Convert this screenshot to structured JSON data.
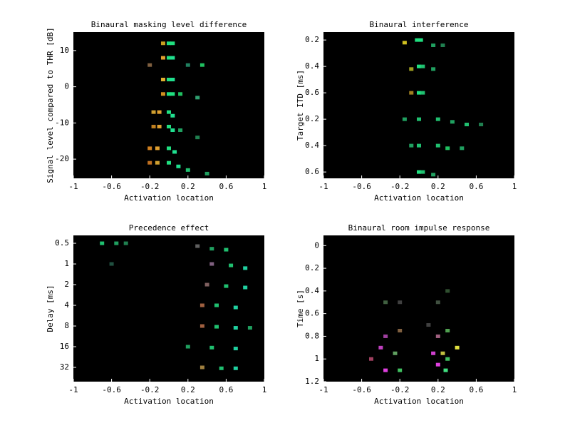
{
  "chart_data": [
    {
      "type": "heatmap",
      "title": "Binaural masking level difference",
      "xlabel": "Activation location",
      "ylabel": "Signal level compared to THR [dB]",
      "xlim": [
        -1,
        1
      ],
      "xticks": [
        -1,
        -0.6,
        -0.2,
        0.2,
        0.6,
        1
      ],
      "ylim": [
        -25.3,
        15.1
      ],
      "yticks": [
        10,
        0,
        -10,
        -20
      ],
      "yinverted": false,
      "ylog": false,
      "background": "#000000",
      "x": [
        -0.06,
        0.0,
        0.04,
        -0.06,
        0.0,
        0.04,
        -0.2,
        0.2,
        0.35,
        -0.06,
        0.0,
        0.04,
        -0.06,
        0.0,
        0.04,
        0.12,
        0.3,
        -0.16,
        -0.1,
        0.0,
        0.04,
        -0.16,
        -0.1,
        0.0,
        0.04,
        0.12,
        0.3,
        -0.2,
        -0.12,
        0.0,
        0.06,
        -0.2,
        -0.12,
        0.0,
        0.1,
        0.2,
        0.4
      ],
      "y": [
        12,
        12,
        12,
        8,
        8,
        8,
        6,
        6,
        6,
        2,
        2,
        2,
        -2,
        -2,
        -2,
        -2,
        -3,
        -7,
        -7,
        -7,
        -8,
        -11,
        -11,
        -11,
        -12,
        -12,
        -14,
        -17,
        -17,
        -17,
        -18,
        -21,
        -21,
        -21,
        -22,
        -23,
        -24
      ],
      "colors": [
        "#c8a020",
        "#20e080",
        "#20e080",
        "#e0a030",
        "#20e080",
        "#20e090",
        "#806040",
        "#208060",
        "#20c060",
        "#e0b030",
        "#20e080",
        "#20e090",
        "#d09020",
        "#20e080",
        "#20e080",
        "#20c060",
        "#30a070",
        "#d0a030",
        "#e0a030",
        "#20e080",
        "#20e090",
        "#c08020",
        "#e0a030",
        "#20e080",
        "#20e090",
        "#20a060",
        "#208050",
        "#d08020",
        "#e0a030",
        "#20e080",
        "#20e090",
        "#c07020",
        "#d0a030",
        "#20e080",
        "#20e090",
        "#20c070",
        "#20a060"
      ]
    },
    {
      "type": "heatmap",
      "title": "Binaural interference",
      "xlabel": "Activation location",
      "ylabel": "Target ITD [ms]",
      "xlim": [
        -1,
        1
      ],
      "xticks": [
        -1,
        -0.6,
        -0.2,
        0.2,
        0.6,
        1
      ],
      "ylim": [
        0.7,
        6.24
      ],
      "yticks": [
        {
          "value": 1,
          "label": "0.2"
        },
        {
          "value": 2,
          "label": "0.4"
        },
        {
          "value": 3,
          "label": "0.6"
        },
        {
          "value": 4,
          "label": "0.2"
        },
        {
          "value": 5,
          "label": "0.4"
        },
        {
          "value": 6,
          "label": "0.6"
        }
      ],
      "yinverted": true,
      "ylog": false,
      "background": "#000000",
      "x": [
        -0.02,
        0.02,
        -0.15,
        0.15,
        0.25,
        0.0,
        0.04,
        0.15,
        -0.08,
        0.0,
        0.04,
        -0.08,
        -0.15,
        0.0,
        0.2,
        0.35,
        0.5,
        0.65,
        -0.08,
        0.0,
        0.2,
        0.3,
        0.45,
        0.0,
        0.04,
        0.15
      ],
      "y": [
        1,
        1,
        1.1,
        1.2,
        1.2,
        2,
        2,
        2.1,
        2.1,
        3,
        3,
        3,
        4,
        4,
        4,
        4.1,
        4.2,
        4.2,
        5,
        5,
        5,
        5.1,
        5.1,
        6,
        6,
        6.1
      ],
      "colors": [
        "#20e080",
        "#20e080",
        "#d0c020",
        "#20a060",
        "#208050",
        "#20e080",
        "#20c070",
        "#20a060",
        "#a0a020",
        "#20e080",
        "#20c070",
        "#a08020",
        "#20a060",
        "#20c070",
        "#20c070",
        "#20a060",
        "#20c070",
        "#208050",
        "#20a060",
        "#20c070",
        "#20c070",
        "#20c060",
        "#20a060",
        "#20e080",
        "#20c070",
        "#20a060"
      ]
    },
    {
      "type": "heatmap",
      "title": "Precedence effect",
      "xlabel": "Activation location",
      "ylabel": "Delay [ms]",
      "xlim": [
        -1,
        1
      ],
      "xticks": [
        -1,
        -0.6,
        -0.2,
        0.2,
        0.6,
        1
      ],
      "ylim": [
        0.384,
        51.6
      ],
      "yticks": [
        0.5,
        1,
        2,
        4,
        8,
        16,
        32
      ],
      "yinverted": true,
      "ylog": true,
      "background": "#000000",
      "x": [
        -0.7,
        -0.55,
        -0.45,
        0.3,
        0.45,
        0.6,
        0.45,
        0.65,
        0.8,
        -0.6,
        0.4,
        0.6,
        0.8,
        0.35,
        0.5,
        0.7,
        0.35,
        0.5,
        0.7,
        0.85,
        0.2,
        0.45,
        0.7,
        0.35,
        0.55,
        0.7
      ],
      "y": [
        0.5,
        0.5,
        0.5,
        0.55,
        0.6,
        0.62,
        1,
        1.05,
        1.15,
        1,
        2,
        2.1,
        2.2,
        4,
        4,
        4.3,
        8,
        8.2,
        8.5,
        8.5,
        16,
        16.5,
        17,
        32,
        33,
        33
      ],
      "colors": [
        "#20c070",
        "#20a060",
        "#208050",
        "#606060",
        "#20a060",
        "#20c070",
        "#806080",
        "#20c070",
        "#20d0a0",
        "#205040",
        "#806060",
        "#20c070",
        "#20d0a0",
        "#a06040",
        "#20c070",
        "#20d0a0",
        "#a06040",
        "#20c070",
        "#20d0a0",
        "#20a060",
        "#20a060",
        "#20c070",
        "#20d0a0",
        "#a08040",
        "#20c070",
        "#20d0a0"
      ]
    },
    {
      "type": "heatmap",
      "title": "Binaural room impulse response",
      "xlabel": "Activation location",
      "ylabel": "Time [s]",
      "xlim": [
        -1,
        1
      ],
      "xticks": [
        -1,
        -0.6,
        -0.2,
        0.2,
        0.6,
        1
      ],
      "ylim": [
        -0.09,
        1.2
      ],
      "yticks": [
        0,
        0.2,
        0.4,
        0.6,
        0.8,
        1,
        1.2
      ],
      "yinverted": true,
      "ylog": false,
      "background": "#000000",
      "x": [
        -0.35,
        -0.2,
        0.2,
        0.3,
        -0.35,
        -0.2,
        0.2,
        0.3,
        -0.4,
        -0.25,
        0.15,
        0.25,
        0.3,
        -0.35,
        -0.2,
        0.2,
        0.28,
        0.4,
        -0.5,
        0.1
      ],
      "y": [
        0.5,
        0.5,
        0.5,
        0.4,
        0.8,
        0.75,
        0.8,
        0.75,
        0.9,
        0.95,
        0.95,
        0.95,
        1.0,
        1.1,
        1.1,
        1.05,
        1.1,
        0.9,
        1.0,
        0.7
      ],
      "colors": [
        "#406040",
        "#404040",
        "#405040",
        "#305030",
        "#a040a0",
        "#806040",
        "#a06080",
        "#50a050",
        "#c040c0",
        "#60a060",
        "#d040d0",
        "#c0c040",
        "#40c060",
        "#e040e0",
        "#40c060",
        "#e040e0",
        "#40e080",
        "#e0e040",
        "#a04060",
        "#404040"
      ]
    }
  ]
}
